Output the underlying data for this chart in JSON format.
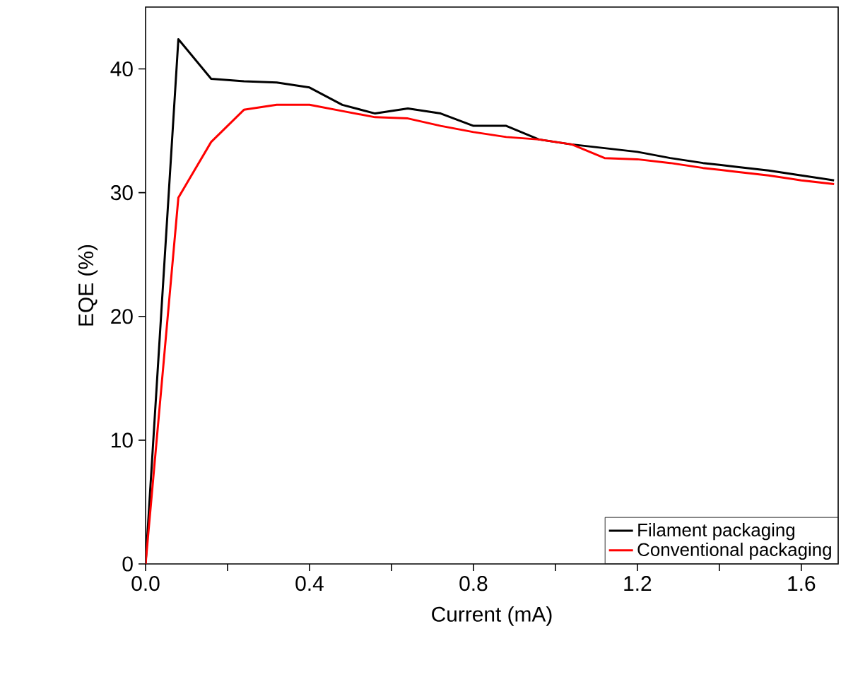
{
  "chart_data": {
    "type": "line",
    "xlabel": "Current (mA)",
    "ylabel": "EQE (%)",
    "xlim": [
      0,
      1.69
    ],
    "ylim": [
      0,
      45
    ],
    "xticks": [
      {
        "value": 0,
        "label": "0.0"
      },
      {
        "value": 0.2,
        "label": null
      },
      {
        "value": 0.4,
        "label": "0.4"
      },
      {
        "value": 0.6,
        "label": null
      },
      {
        "value": 0.8,
        "label": "0.8"
      },
      {
        "value": 1.0,
        "label": null
      },
      {
        "value": 1.2,
        "label": "1.2"
      },
      {
        "value": 1.4,
        "label": null
      },
      {
        "value": 1.6,
        "label": "1.6"
      }
    ],
    "yticks": [
      0,
      10,
      20,
      30,
      40
    ],
    "x": [
      0,
      0.08,
      0.16,
      0.24,
      0.32,
      0.4,
      0.48,
      0.56,
      0.64,
      0.72,
      0.8,
      0.88,
      0.96,
      1.04,
      1.12,
      1.2,
      1.28,
      1.36,
      1.44,
      1.52,
      1.6,
      1.68
    ],
    "legend": "bottom right",
    "grid": false,
    "marker": "none",
    "line_style": "solid",
    "series": [
      {
        "name": "Filament packaging",
        "color": "#000000",
        "values": [
          0,
          42.4,
          39.2,
          39.0,
          38.9,
          38.5,
          37.1,
          36.4,
          36.8,
          36.4,
          35.4,
          35.4,
          34.3,
          33.9,
          33.6,
          33.3,
          32.8,
          32.4,
          32.1,
          31.8,
          31.4,
          31.0
        ]
      },
      {
        "name": "Conventional packaging",
        "color": "#ff0000",
        "values": [
          0,
          29.6,
          34.1,
          36.7,
          37.1,
          37.1,
          36.6,
          36.1,
          36.0,
          35.4,
          34.9,
          34.5,
          34.3,
          33.9,
          32.8,
          32.7,
          32.4,
          32.0,
          31.7,
          31.4,
          31.0,
          30.7
        ]
      }
    ]
  }
}
